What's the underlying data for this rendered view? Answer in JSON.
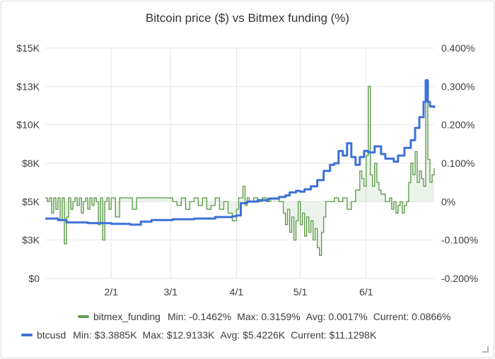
{
  "panel": {
    "title": "Bitcoin price ($) vs Bitmex funding (%)"
  },
  "chart_data": {
    "type": "line",
    "title": "Bitcoin price ($) vs Bitmex funding (%)",
    "x_ticks": [
      "2/1",
      "3/1",
      "4/1",
      "5/1",
      "6/1"
    ],
    "x_tick_days": [
      31,
      59,
      90,
      120,
      151
    ],
    "x_range_days": [
      0,
      183
    ],
    "left_axis": {
      "ticks": [
        "$0",
        "$3K",
        "$5K",
        "$8K",
        "$10K",
        "$13K",
        "$15K"
      ],
      "tick_values": [
        0,
        2500,
        5000,
        7500,
        10000,
        12500,
        15000
      ],
      "range": [
        0,
        15000
      ]
    },
    "right_axis": {
      "ticks": [
        "-0.200%",
        "-0.100%",
        "0%",
        "0.100%",
        "0.200%",
        "0.300%",
        "0.400%"
      ],
      "tick_values": [
        -0.2,
        -0.1,
        0,
        0.1,
        0.2,
        0.3,
        0.4
      ],
      "range": [
        -0.2,
        0.4
      ]
    },
    "series": [
      {
        "name": "bitmex_funding",
        "axis": "right",
        "color": "#629e51",
        "fill": true,
        "legend": {
          "min": "-0.1462%",
          "max": "0.3159%",
          "avg": "0.0017%",
          "current": "0.0866%"
        },
        "points": [
          [
            0,
            0.01
          ],
          [
            1,
            0.0
          ],
          [
            2,
            0.01
          ],
          [
            3,
            -0.03
          ],
          [
            4,
            0.01
          ],
          [
            5,
            -0.02
          ],
          [
            6,
            0.01
          ],
          [
            7,
            -0.05
          ],
          [
            8,
            0.01
          ],
          [
            9,
            -0.11
          ],
          [
            10,
            -0.04
          ],
          [
            11,
            0.01
          ],
          [
            12,
            -0.02
          ],
          [
            13,
            0.0
          ],
          [
            14,
            0.01
          ],
          [
            15,
            -0.01
          ],
          [
            16,
            0.01
          ],
          [
            17,
            -0.03
          ],
          [
            18,
            0.0
          ],
          [
            19,
            0.01
          ],
          [
            20,
            -0.02
          ],
          [
            21,
            0.01
          ],
          [
            22,
            -0.01
          ],
          [
            23,
            0.01
          ],
          [
            24,
            0.0
          ],
          [
            25,
            -0.06
          ],
          [
            26,
            0.01
          ],
          [
            27,
            -0.1
          ],
          [
            28,
            0.0
          ],
          [
            29,
            0.01
          ],
          [
            30,
            -0.02
          ],
          [
            31,
            0.01
          ],
          [
            33,
            -0.04
          ],
          [
            35,
            0.01
          ],
          [
            38,
            0.01
          ],
          [
            41,
            -0.02
          ],
          [
            43,
            0.01
          ],
          [
            46,
            0.01
          ],
          [
            50,
            0.01
          ],
          [
            54,
            0.01
          ],
          [
            58,
            0.01
          ],
          [
            60,
            0.0
          ],
          [
            62,
            -0.01
          ],
          [
            64,
            0.01
          ],
          [
            66,
            -0.02
          ],
          [
            68,
            0.0
          ],
          [
            70,
            0.01
          ],
          [
            72,
            -0.01
          ],
          [
            74,
            0.01
          ],
          [
            76,
            -0.02
          ],
          [
            78,
            -0.01
          ],
          [
            80,
            0.01
          ],
          [
            82,
            -0.02
          ],
          [
            84,
            0.0
          ],
          [
            86,
            -0.03
          ],
          [
            88,
            -0.05
          ],
          [
            90,
            -0.02
          ],
          [
            91,
            0.01
          ],
          [
            93,
            0.04
          ],
          [
            94,
            -0.01
          ],
          [
            95,
            0.01
          ],
          [
            96,
            0.0
          ],
          [
            98,
            0.01
          ],
          [
            100,
            0.0
          ],
          [
            102,
            0.01
          ],
          [
            104,
            0.0
          ],
          [
            106,
            0.01
          ],
          [
            108,
            0.01
          ],
          [
            110,
            0.0
          ],
          [
            112,
            -0.03
          ],
          [
            113,
            -0.06
          ],
          [
            114,
            -0.02
          ],
          [
            115,
            -0.08
          ],
          [
            116,
            -0.04
          ],
          [
            117,
            -0.1
          ],
          [
            118,
            -0.05
          ],
          [
            119,
            0.0
          ],
          [
            120,
            -0.06
          ],
          [
            121,
            -0.03
          ],
          [
            122,
            -0.09
          ],
          [
            123,
            -0.04
          ],
          [
            124,
            -0.08
          ],
          [
            125,
            -0.05
          ],
          [
            126,
            -0.1
          ],
          [
            127,
            -0.07
          ],
          [
            128,
            -0.12
          ],
          [
            129,
            -0.14
          ],
          [
            130,
            -0.08
          ],
          [
            131,
            -0.04
          ],
          [
            132,
            0.0
          ],
          [
            134,
            0.0
          ],
          [
            136,
            0.01
          ],
          [
            138,
            0.0
          ],
          [
            140,
            0.01
          ],
          [
            142,
            -0.02
          ],
          [
            144,
            0.0
          ],
          [
            146,
            0.03
          ],
          [
            148,
            0.08
          ],
          [
            149,
            0.06
          ],
          [
            150,
            0.04
          ],
          [
            151,
            0.12
          ],
          [
            152,
            0.3
          ],
          [
            153,
            0.07
          ],
          [
            154,
            0.04
          ],
          [
            155,
            0.1
          ],
          [
            156,
            0.05
          ],
          [
            157,
            0.03
          ],
          [
            158,
            0.02
          ],
          [
            160,
            0.0
          ],
          [
            162,
            0.01
          ],
          [
            163,
            -0.02
          ],
          [
            164,
            0.0
          ],
          [
            165,
            -0.03
          ],
          [
            166,
            -0.01
          ],
          [
            167,
            0.0
          ],
          [
            168,
            -0.03
          ],
          [
            169,
            -0.01
          ],
          [
            170,
            0.0
          ],
          [
            171,
            0.05
          ],
          [
            172,
            0.1
          ],
          [
            173,
            0.07
          ],
          [
            174,
            0.13
          ],
          [
            175,
            0.05
          ],
          [
            176,
            0.08
          ],
          [
            177,
            0.06
          ],
          [
            178,
            0.04
          ],
          [
            179,
            0.28
          ],
          [
            180,
            0.11
          ],
          [
            181,
            0.05
          ],
          [
            182,
            0.07
          ],
          [
            183,
            0.087
          ]
        ]
      },
      {
        "name": "btcusd",
        "axis": "left",
        "color": "#3d71d9",
        "fill": false,
        "legend": {
          "min": "$3.3885K",
          "max": "$12.9133K",
          "avg": "$5.4226K",
          "current": "$11.1298K"
        },
        "points": [
          [
            0,
            3900
          ],
          [
            6,
            3800
          ],
          [
            10,
            3650
          ],
          [
            20,
            3600
          ],
          [
            31,
            3550
          ],
          [
            40,
            3500
          ],
          [
            45,
            3700
          ],
          [
            50,
            3800
          ],
          [
            60,
            3850
          ],
          [
            70,
            3900
          ],
          [
            80,
            4000
          ],
          [
            88,
            4050
          ],
          [
            90,
            4100
          ],
          [
            92,
            4900
          ],
          [
            95,
            5000
          ],
          [
            100,
            5100
          ],
          [
            105,
            5200
          ],
          [
            110,
            5300
          ],
          [
            113,
            5400
          ],
          [
            115,
            5600
          ],
          [
            118,
            5700
          ],
          [
            120,
            5650
          ],
          [
            122,
            5800
          ],
          [
            125,
            6000
          ],
          [
            128,
            6400
          ],
          [
            131,
            7000
          ],
          [
            134,
            7400
          ],
          [
            136,
            7500
          ],
          [
            138,
            8300
          ],
          [
            140,
            8000
          ],
          [
            142,
            8800
          ],
          [
            144,
            7900
          ],
          [
            146,
            7400
          ],
          [
            148,
            7900
          ],
          [
            150,
            8300
          ],
          [
            152,
            8200
          ],
          [
            155,
            8600
          ],
          [
            158,
            8100
          ],
          [
            160,
            7800
          ],
          [
            162,
            7800
          ],
          [
            164,
            7600
          ],
          [
            166,
            8000
          ],
          [
            169,
            8500
          ],
          [
            172,
            9000
          ],
          [
            174,
            9800
          ],
          [
            176,
            10500
          ],
          [
            178,
            11500
          ],
          [
            179,
            12900
          ],
          [
            180,
            11500
          ],
          [
            181,
            11200
          ],
          [
            183,
            11100
          ]
        ]
      }
    ]
  }
}
